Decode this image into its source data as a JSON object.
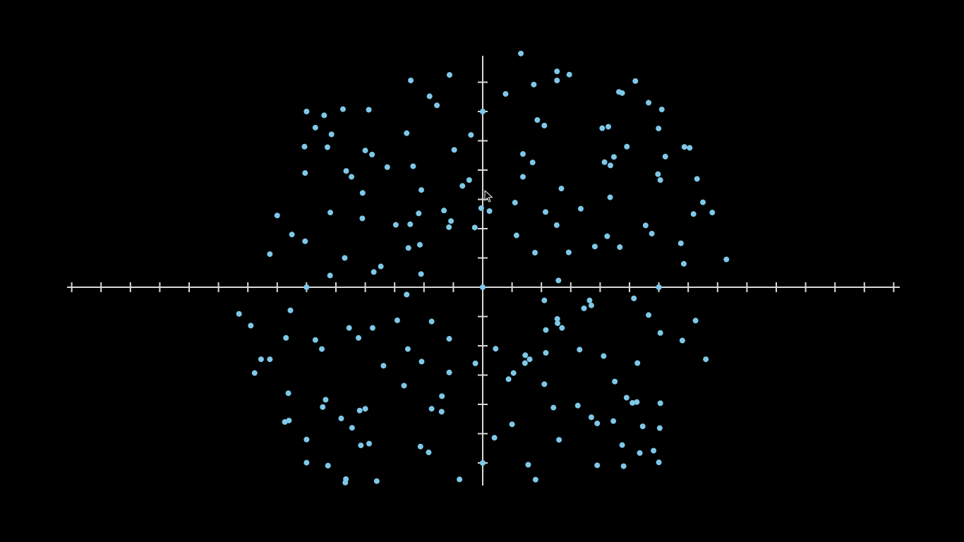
{
  "colors": {
    "background": "#000000",
    "axis": "#d9d9d9",
    "point": "#7ec8e8",
    "cursor_fill": "#000000",
    "cursor_stroke": "#cfcfcf"
  },
  "icons": {
    "cursor": "mouse-pointer-arrow-icon"
  },
  "chart_data": {
    "type": "scatter",
    "title": "",
    "xlabel": "",
    "ylabel": "",
    "xlim": [
      -14,
      14
    ],
    "ylim": [
      -6.7,
      8
    ],
    "x_ticks": [
      -14,
      -13,
      -12,
      -11,
      -10,
      -9,
      -8,
      -7,
      -6,
      -5,
      -4,
      -3,
      -2,
      -1,
      1,
      2,
      3,
      4,
      5,
      6,
      7,
      8,
      9,
      10,
      11,
      12,
      13,
      14
    ],
    "y_ticks": [
      -6,
      -5,
      -4,
      -3,
      -2,
      -1,
      1,
      2,
      3,
      4,
      5,
      6,
      7
    ],
    "tick_labels": false,
    "grid": false,
    "legend": false,
    "series": [
      {
        "points": [
          [
            1.3,
            7.98
          ],
          [
            2.53,
            7.37
          ],
          [
            2.95,
            7.26
          ],
          [
            2.53,
            7.06
          ],
          [
            1.74,
            6.92
          ],
          [
            0.78,
            6.6
          ],
          [
            -2.45,
            7.06
          ],
          [
            -1.13,
            7.25
          ],
          [
            -1.81,
            6.52
          ],
          [
            -1.56,
            6.21
          ],
          [
            -6.0,
            6.0
          ],
          [
            -5.4,
            5.87
          ],
          [
            -4.76,
            6.08
          ],
          [
            -3.88,
            6.06
          ],
          [
            -5.7,
            5.45
          ],
          [
            -5.15,
            5.22
          ],
          [
            -2.59,
            5.26
          ],
          [
            -0.4,
            5.2
          ],
          [
            -6.07,
            4.8
          ],
          [
            -5.29,
            4.78
          ],
          [
            -4.0,
            4.67
          ],
          [
            -3.77,
            4.53
          ],
          [
            -0.97,
            4.69
          ],
          [
            -6.05,
            3.9
          ],
          [
            -4.65,
            3.97
          ],
          [
            -4.47,
            3.77
          ],
          [
            -3.25,
            4.1
          ],
          [
            -2.37,
            4.13
          ],
          [
            -4.09,
            3.22
          ],
          [
            -2.09,
            3.32
          ],
          [
            -0.69,
            3.46
          ],
          [
            -0.46,
            3.66
          ],
          [
            -7.0,
            2.45
          ],
          [
            -5.19,
            2.55
          ],
          [
            -4.1,
            2.35
          ],
          [
            -2.18,
            2.52
          ],
          [
            -0.05,
            2.7
          ],
          [
            -0.27,
            2.04
          ],
          [
            -1.32,
            2.62
          ],
          [
            -1.15,
            2.05
          ],
          [
            -2.96,
            2.13
          ],
          [
            -2.47,
            2.15
          ],
          [
            -1.08,
            2.26
          ],
          [
            -6.5,
            1.8
          ],
          [
            -6.05,
            1.57
          ],
          [
            -2.14,
            1.45
          ],
          [
            -2.53,
            1.34
          ],
          [
            -7.25,
            1.13
          ],
          [
            -4.7,
            1.0
          ],
          [
            -3.47,
            0.71
          ],
          [
            -3.71,
            0.52
          ],
          [
            -2.1,
            0.45
          ],
          [
            -5.2,
            0.4
          ],
          [
            -2.59,
            -0.25
          ],
          [
            0.23,
            2.6
          ],
          [
            1.1,
            2.89
          ],
          [
            1.15,
            1.77
          ],
          [
            2.14,
            2.57
          ],
          [
            2.52,
            2.12
          ],
          [
            3.34,
            2.68
          ],
          [
            1.78,
            1.18
          ],
          [
            2.93,
            1.19
          ],
          [
            3.82,
            1.39
          ],
          [
            4.24,
            1.74
          ],
          [
            4.67,
            1.37
          ],
          [
            5.55,
            2.11
          ],
          [
            5.76,
            1.83
          ],
          [
            6.75,
            1.5
          ],
          [
            6.85,
            0.8
          ],
          [
            7.5,
            2.9
          ],
          [
            7.82,
            2.55
          ],
          [
            7.18,
            2.5
          ],
          [
            8.3,
            0.95
          ],
          [
            2.58,
            0.23
          ],
          [
            5.97,
            3.86
          ],
          [
            6.05,
            3.66
          ],
          [
            6.22,
            4.46
          ],
          [
            4.47,
            4.45
          ],
          [
            4.91,
            4.8
          ],
          [
            4.07,
            5.43
          ],
          [
            4.28,
            5.48
          ],
          [
            6.87,
            4.79
          ],
          [
            7.05,
            4.76
          ],
          [
            6.1,
            6.07
          ],
          [
            5.65,
            6.3
          ],
          [
            5.99,
            5.42
          ],
          [
            5.2,
            7.04
          ],
          [
            4.75,
            6.63
          ],
          [
            4.64,
            6.67
          ],
          [
            1.86,
            5.71
          ],
          [
            2.1,
            5.52
          ],
          [
            1.37,
            4.55
          ],
          [
            1.7,
            4.26
          ],
          [
            1.37,
            3.77
          ],
          [
            4.15,
            4.27
          ],
          [
            4.35,
            4.16
          ],
          [
            2.68,
            3.37
          ],
          [
            4.34,
            3.07
          ],
          [
            7.3,
            3.7
          ],
          [
            -8.3,
            -0.91
          ],
          [
            -6.55,
            -0.79
          ],
          [
            -7.9,
            -1.31
          ],
          [
            -6.7,
            -1.73
          ],
          [
            -5.7,
            -1.8
          ],
          [
            -7.25,
            -2.46
          ],
          [
            -7.55,
            -2.46
          ],
          [
            -7.77,
            -2.93
          ],
          [
            -5.48,
            -2.11
          ],
          [
            -4.55,
            -1.39
          ],
          [
            -3.75,
            -1.39
          ],
          [
            -4.23,
            -1.73
          ],
          [
            -2.91,
            -1.13
          ],
          [
            -1.74,
            -1.17
          ],
          [
            -2.55,
            -2.11
          ],
          [
            -2.08,
            -2.54
          ],
          [
            -3.38,
            -2.68
          ],
          [
            -1.14,
            -1.76
          ],
          [
            -1.14,
            -2.91
          ],
          [
            -0.25,
            -2.6
          ],
          [
            -2.68,
            -3.36
          ],
          [
            -6.62,
            -3.62
          ],
          [
            -5.35,
            -3.84
          ],
          [
            -5.45,
            -4.09
          ],
          [
            -4.0,
            -4.15
          ],
          [
            -4.19,
            -4.21
          ],
          [
            -1.39,
            -3.72
          ],
          [
            -1.4,
            -4.25
          ],
          [
            -1.74,
            -4.15
          ],
          [
            -6.74,
            -4.6
          ],
          [
            -6.6,
            -4.55
          ],
          [
            -4.82,
            -4.48
          ],
          [
            -4.45,
            -4.8
          ],
          [
            -6.0,
            -5.2
          ],
          [
            -4.15,
            -5.4
          ],
          [
            -3.87,
            -5.34
          ],
          [
            -2.12,
            -5.44
          ],
          [
            -1.84,
            -5.64
          ],
          [
            -6.0,
            -5.99
          ],
          [
            -5.27,
            -6.09
          ],
          [
            -4.66,
            -6.55
          ],
          [
            -3.61,
            -6.62
          ],
          [
            -0.79,
            -6.56
          ],
          [
            -4.68,
            -6.67
          ],
          [
            0.44,
            -2.1
          ],
          [
            0.88,
            -3.14
          ],
          [
            1.05,
            -2.93
          ],
          [
            1.44,
            -2.59
          ],
          [
            1.6,
            -2.46
          ],
          [
            1.45,
            -2.32
          ],
          [
            2.15,
            -2.24
          ],
          [
            2.15,
            -1.46
          ],
          [
            2.1,
            -0.45
          ],
          [
            2.55,
            -1.23
          ],
          [
            2.7,
            -1.39
          ],
          [
            3.45,
            -0.72
          ],
          [
            3.64,
            -0.45
          ],
          [
            3.7,
            -0.62
          ],
          [
            2.54,
            -1.08
          ],
          [
            2.1,
            -3.31
          ],
          [
            2.41,
            -4.11
          ],
          [
            3.24,
            -4.04
          ],
          [
            1.0,
            -4.68
          ],
          [
            0.4,
            -5.14
          ],
          [
            2.6,
            -5.21
          ],
          [
            3.7,
            -4.44
          ],
          [
            3.9,
            -4.65
          ],
          [
            4.9,
            -3.77
          ],
          [
            5.1,
            -3.95
          ],
          [
            5.25,
            -3.92
          ],
          [
            4.5,
            -3.22
          ],
          [
            4.45,
            -4.57
          ],
          [
            4.12,
            -2.35
          ],
          [
            3.3,
            -2.13
          ],
          [
            5.27,
            -2.59
          ],
          [
            6.05,
            -1.56
          ],
          [
            6.8,
            -1.82
          ],
          [
            7.25,
            -1.14
          ],
          [
            7.6,
            -2.46
          ],
          [
            5.65,
            -0.95
          ],
          [
            5.15,
            -0.38
          ],
          [
            6.05,
            -3.96
          ],
          [
            6.03,
            -4.81
          ],
          [
            5.45,
            -4.75
          ],
          [
            4.75,
            -5.39
          ],
          [
            5.35,
            -5.66
          ],
          [
            5.82,
            -5.58
          ],
          [
            6.0,
            -5.98
          ],
          [
            3.9,
            -6.08
          ],
          [
            4.8,
            -6.11
          ],
          [
            1.55,
            -6.06
          ],
          [
            1.8,
            -6.57
          ],
          [
            0.0,
            6.0
          ],
          [
            0.0,
            0.0
          ],
          [
            6.0,
            0.0
          ],
          [
            -6.0,
            0.0
          ],
          [
            0.0,
            -6.0
          ]
        ]
      }
    ]
  }
}
